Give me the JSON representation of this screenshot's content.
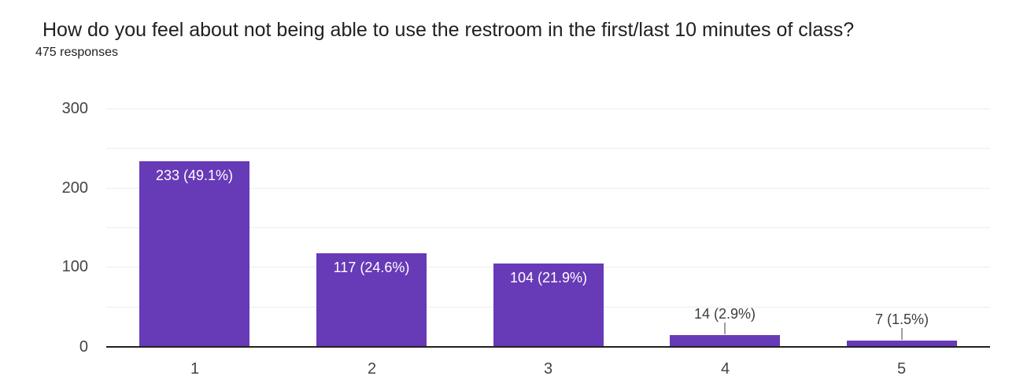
{
  "header": {
    "title": "How do you feel about not being able to use the restroom in the first/last 10 minutes of class?",
    "subtitle": "475 responses"
  },
  "chart_data": {
    "type": "bar",
    "title": "How do you feel about not being able to use the restroom in the first/last 10 minutes of class?",
    "subtitle": "475 responses",
    "categories": [
      "1",
      "2",
      "3",
      "4",
      "5"
    ],
    "values": [
      233,
      117,
      104,
      14,
      7
    ],
    "bar_labels": [
      "233 (49.1%)",
      "117 (24.6%)",
      "104 (21.9%)",
      "14 (2.9%)",
      "7 (1.5%)"
    ],
    "label_placement": [
      "inside",
      "inside",
      "inside",
      "outside",
      "outside"
    ],
    "xlabel": "",
    "ylabel": "",
    "ylim": [
      0,
      300
    ],
    "yticks": [
      0,
      100,
      200,
      300
    ],
    "minor_gridline_step": 50,
    "grid": true,
    "legend": "none",
    "colors": {
      "bar": "#673ab7",
      "label_inside": "#ffffff",
      "label_outside": "#3c3c3c",
      "axis_text": "#444444",
      "gridline": "#ededed",
      "baseline": "#212121",
      "connector": "#9e9e9e"
    }
  }
}
